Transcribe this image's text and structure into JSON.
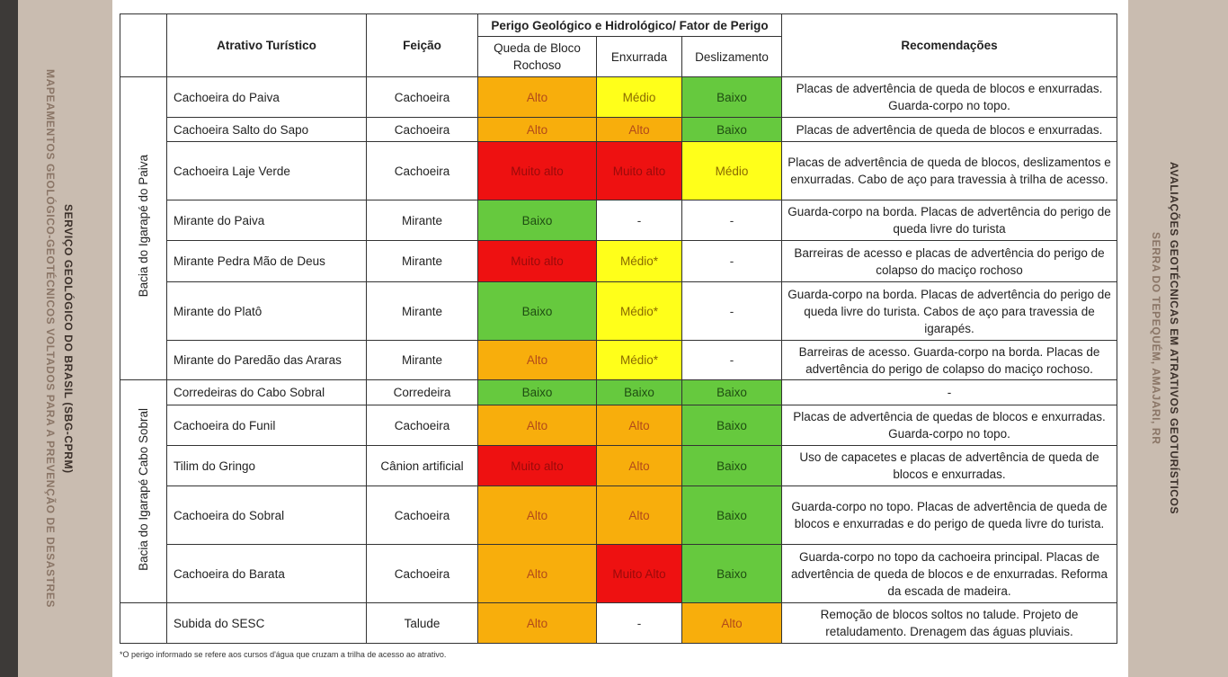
{
  "side_left": {
    "line1": "MAPEAMENTOS GEOLÓGICO-GEOTÉCNICOS VOLTADOS PARA A PREVENÇÃO DE DESASTRES",
    "line2": "SERVIÇO GEOLÓGICO DO BRASIL (SBG-CPRM)"
  },
  "side_right": {
    "line1": "AVALIAÇÕES GEOTÉCNICAS EM ATRATIVOS GEOTURÍSTICOS",
    "line2": "SERRA DO TEPEQUÉM, AMAJARI, RR"
  },
  "header": {
    "attraction": "Atrativo Turístico",
    "feature": "Feição",
    "hazard": "Perigo Geológico e Hidrológico/ Fator de Perigo",
    "queda": "Queda de Bloco Rochoso",
    "enxurrada": "Enxurrada",
    "deslizamento": "Deslizamento",
    "rec": "Recomendações"
  },
  "risk_colors": {
    "Alto": {
      "fill": "#f8ae0c",
      "text": "#b24a1a"
    },
    "Médio": {
      "fill": "#ffff1a",
      "text": "#8a6a00"
    },
    "Médio*": {
      "fill": "#ffff1a",
      "text": "#8a6a00"
    },
    "Baixo": {
      "fill": "#66c93e",
      "text": "#1f4d12"
    },
    "Muito alto": {
      "fill": "#ee1111",
      "text": "#9a0a0a"
    },
    "Muito Alto": {
      "fill": "#ee1111",
      "text": "#9a0a0a"
    },
    "-": {
      "fill": "#ffffff",
      "text": "#333333"
    }
  },
  "sections": [
    {
      "group": "Bacia do Igarapé do Paiva",
      "rows": [
        {
          "name": "Cachoeira do Paiva",
          "feature": "Cachoeira",
          "queda": "Alto",
          "enxurrada": "Médio",
          "deslizamento": "Baixo",
          "rec": "Placas de advertência de queda de blocos e enxurradas. Guarda-corpo no topo."
        },
        {
          "name": "Cachoeira Salto do Sapo",
          "feature": "Cachoeira",
          "queda": "Alto",
          "enxurrada": "Alto",
          "deslizamento": "Baixo",
          "rec": "Placas de advertência de queda de blocos e enxurradas."
        },
        {
          "name": "Cachoeira Laje Verde",
          "feature": "Cachoeira",
          "queda": "Muito alto",
          "enxurrada": "Muito alto",
          "deslizamento": "Médio",
          "rec": "Placas de advertência de queda de blocos, deslizamentos e enxurradas.  Cabo de aço para travessia à trilha de acesso."
        },
        {
          "name": "Mirante do Paiva",
          "feature": "Mirante",
          "queda": "Baixo",
          "enxurrada": "-",
          "deslizamento": "-",
          "rec": "Guarda-corpo na borda. Placas de advertência do perigo de queda livre do turista"
        },
        {
          "name": "Mirante Pedra Mão de Deus",
          "feature": "Mirante",
          "queda": "Muito alto",
          "enxurrada": "Médio*",
          "deslizamento": "-",
          "rec": "Barreiras de acesso e placas de advertência do perigo de colapso do maciço rochoso"
        },
        {
          "name": "Mirante do Platô",
          "feature": "Mirante",
          "queda": "Baixo",
          "enxurrada": "Médio*",
          "deslizamento": "-",
          "rec": "Guarda-corpo na borda. Placas de advertência do perigo de queda livre do turista.  Cabos de aço para travessia de igarapés."
        },
        {
          "name": "Mirante do Paredão das Araras",
          "feature": "Mirante",
          "queda": "Alto",
          "enxurrada": "Médio*",
          "deslizamento": "-",
          "rec": "Barreiras de acesso. Guarda-corpo na borda. Placas de advertência do perigo de colapso do maciço rochoso."
        }
      ]
    },
    {
      "group": "Bacia do Igarapé Cabo Sobral",
      "rows": [
        {
          "name": "Corredeiras do Cabo Sobral",
          "feature": "Corredeira",
          "queda": "Baixo",
          "enxurrada": "Baixo",
          "deslizamento": "Baixo",
          "rec": "-"
        },
        {
          "name": "Cachoeira do Funil",
          "feature": "Cachoeira",
          "queda": "Alto",
          "enxurrada": "Alto",
          "deslizamento": "Baixo",
          "rec": "Placas de advertência de quedas de blocos e enxurradas.  Guarda-corpo no topo."
        },
        {
          "name": "Tilim do Gringo",
          "feature": "Cânion artificial",
          "queda": "Muito alto",
          "enxurrada": "Alto",
          "deslizamento": "Baixo",
          "rec": "Uso de capacetes e placas de advertência de queda de blocos e enxurradas."
        },
        {
          "name": "Cachoeira do Sobral",
          "feature": "Cachoeira",
          "queda": "Alto",
          "enxurrada": "Alto",
          "deslizamento": "Baixo",
          "rec": "Guarda-corpo no topo. Placas de advertência de queda de blocos e enxurradas e do perigo de queda livre do turista."
        },
        {
          "name": "Cachoeira do Barata",
          "feature": "Cachoeira",
          "queda": "Alto",
          "enxurrada": "Muito Alto",
          "deslizamento": "Baixo",
          "rec": "Guarda-corpo no topo da cachoeira principal. Placas de advertência de queda de blocos e de enxurradas. Reforma da escada de madeira."
        }
      ]
    },
    {
      "rows": [
        {
          "name": "Subida do SESC",
          "feature": "Talude",
          "queda": "Alto",
          "enxurrada": "-",
          "deslizamento": "Alto",
          "rec": "Remoção de blocos soltos no talude. Projeto de retaludamento. Drenagem das águas pluviais."
        }
      ]
    }
  ],
  "footnote": "*O perigo informado se refere aos cursos d'água que cruzam a trilha de acesso ao atrativo."
}
